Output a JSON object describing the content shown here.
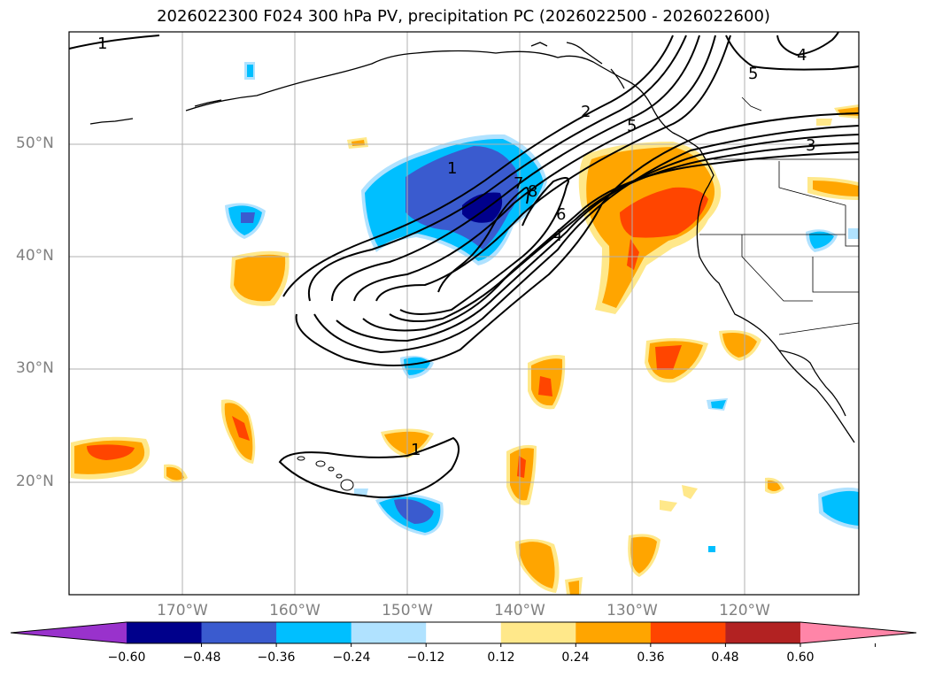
{
  "title": "2026022300 F024 300 hPa PV, precipitation PC (2026022500 - 2026022600)",
  "lat_labels": [
    "50°N",
    "40°N",
    "30°N",
    "20°N"
  ],
  "lon_labels": [
    "170°W",
    "160°W",
    "150°W",
    "140°W",
    "130°W",
    "120°W"
  ],
  "contour_labels": [
    "1",
    "2",
    "5",
    "7",
    "8",
    "6",
    "4",
    "5",
    "4",
    "3",
    "1",
    "1"
  ],
  "colorbar": {
    "ticks": [
      "−0.60",
      "−0.48",
      "−0.36",
      "−0.24",
      "−0.12",
      "0.12",
      "0.24",
      "0.36",
      "0.48",
      "0.60"
    ],
    "colors": [
      "#9932cc",
      "#00008b",
      "#3a5bcf",
      "#00bfff",
      "#b0e2ff",
      "#ffffff",
      "#ffe88a",
      "#ffa500",
      "#ff4500",
      "#b22222",
      "#ff85a8"
    ]
  }
}
